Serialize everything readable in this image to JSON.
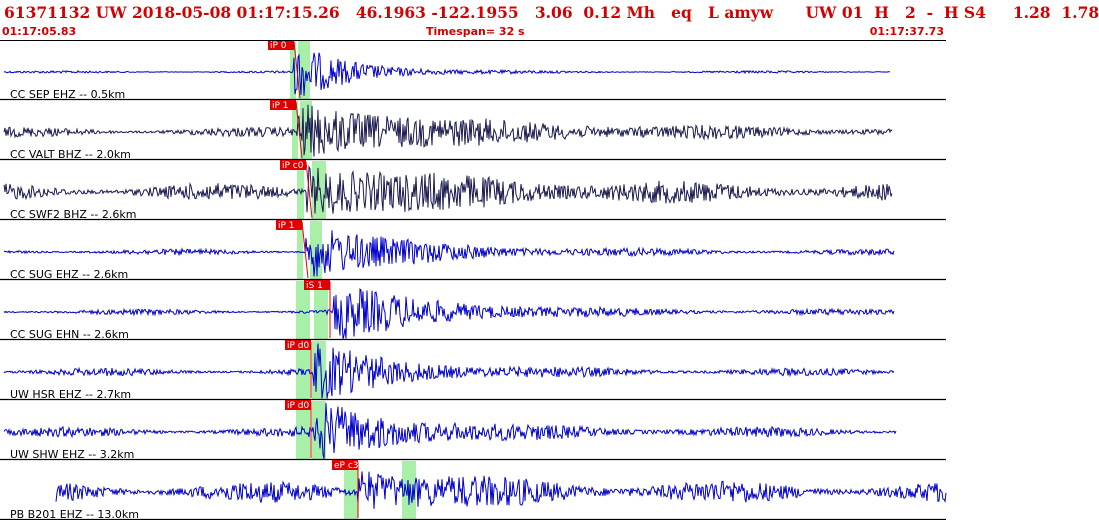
{
  "header": {
    "event_line": "61371132 UW 2018-05-08 01:17:15.26   46.1963 -122.1955   3.06  0.12 Mh   eq   L amyw      UW 01  H   2  -  H S4     1.28  1.78",
    "start_time": "01:17:05.83",
    "timespan": "Timespan=  32 s",
    "end_time": "01:17:37.73"
  },
  "colors": {
    "header_text": "#d40000",
    "trace_blue": "#0000cc",
    "trace_dark": "#1a1a50",
    "pick_box": "#e00000",
    "window_green": "#a8f0a8"
  },
  "traces": [
    {
      "label": "CC SEP EHZ -- 0.5km",
      "pick": "iP 0",
      "color": "blue"
    },
    {
      "label": "CC VALT BHZ -- 2.0km",
      "pick": "iP 1",
      "color": "dark"
    },
    {
      "label": "CC SWF2 BHZ -- 2.6km",
      "pick": "iP c0",
      "color": "dark"
    },
    {
      "label": "CC SUG EHZ -- 2.6km",
      "pick": "iP 1",
      "color": "blue"
    },
    {
      "label": "CC SUG EHN -- 2.6km",
      "pick": "iS 1",
      "color": "blue"
    },
    {
      "label": "UW HSR EHZ -- 2.7km",
      "pick": "iP d0",
      "color": "blue"
    },
    {
      "label": "UW SHW EHZ -- 3.2km",
      "pick": "iP d0",
      "color": "blue"
    },
    {
      "label": "PB B201 EHZ -- 13.0km",
      "pick": "eP c3",
      "color": "blue"
    }
  ]
}
